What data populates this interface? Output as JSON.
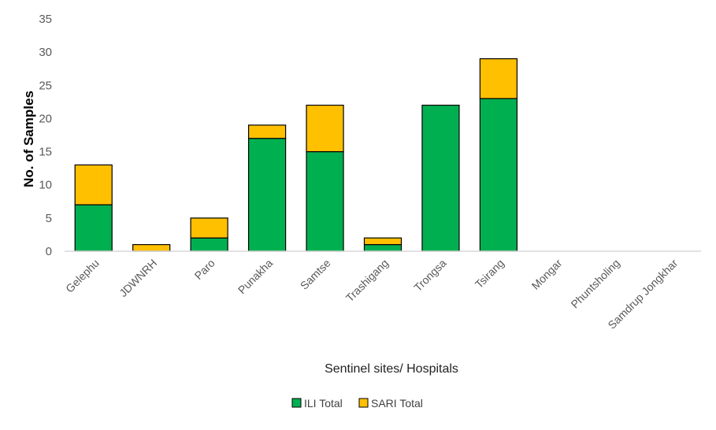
{
  "chart_data": {
    "type": "bar",
    "stacked": true,
    "title": "",
    "xlabel": "Sentinel sites/ Hospitals",
    "ylabel": "No. of Samples",
    "ylim": [
      0,
      35
    ],
    "yticks": [
      0,
      5,
      10,
      15,
      20,
      25,
      30,
      35
    ],
    "grid": false,
    "legend_position": "bottom",
    "categories": [
      "Gelephu",
      "JDWNRH",
      "Paro",
      "Punakha",
      "Samtse",
      "Trashigang",
      "Trongsa",
      "Tsirang",
      "Mongar",
      "Phuntsholing",
      "Samdrup Jongkhar"
    ],
    "series": [
      {
        "name": "ILI Total",
        "color": "#00B050",
        "values": [
          7,
          0,
          2,
          17,
          15,
          1,
          22,
          23,
          0,
          0,
          0
        ]
      },
      {
        "name": "SARI Total",
        "color": "#FFC000",
        "values": [
          6,
          1,
          3,
          2,
          7,
          1,
          0,
          6,
          0,
          0,
          0
        ]
      }
    ]
  }
}
